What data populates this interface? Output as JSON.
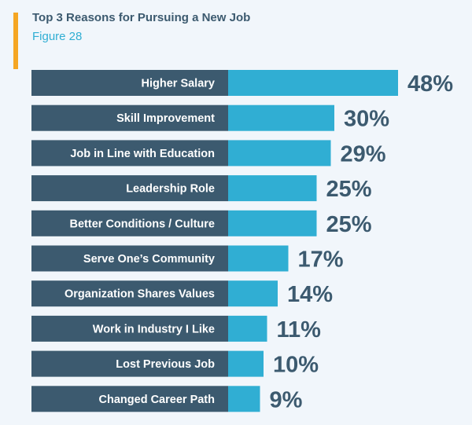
{
  "header": {
    "title": "Top 3 Reasons for Pursuing a New Job",
    "subtitle": "Figure 28"
  },
  "colors": {
    "background": "#f1f6fb",
    "label_bar": "#3c5a6f",
    "value_bar": "#30aed3",
    "accent": "#f5a623",
    "value_text": "#3c5a6f"
  },
  "chart_data": {
    "type": "bar",
    "orientation": "horizontal",
    "title": "Top 3 Reasons for Pursuing a New Job",
    "subtitle": "Figure 28",
    "categories": [
      "Higher Salary",
      "Skill Improvement",
      "Job in Line with Education",
      "Leadership Role",
      "Better Conditions / Culture",
      "Serve One’s Community",
      "Organization Shares Values",
      "Work in Industry I Like",
      "Lost Previous Job",
      "Changed Career Path"
    ],
    "values": [
      48,
      30,
      29,
      25,
      25,
      17,
      14,
      11,
      10,
      9
    ],
    "value_labels": [
      "48%",
      "30%",
      "29%",
      "25%",
      "25%",
      "17%",
      "14%",
      "11%",
      "10%",
      "9%"
    ],
    "unit": "%",
    "xlim": [
      0,
      48
    ],
    "grid": false,
    "legend": "none"
  }
}
